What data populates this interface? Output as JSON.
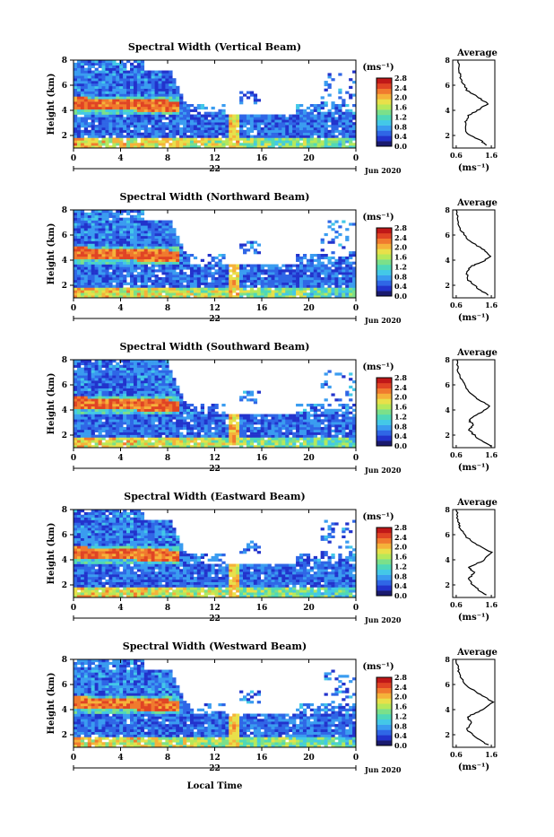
{
  "xlabel_bottom": "Local Time",
  "date_label": "Jun 2020",
  "day_label": "22",
  "height_label": "Height (km)",
  "avg_title": "Average",
  "unit_label": "(ms⁻¹)",
  "colors": {
    "ramp": [
      "#1a1a6e",
      "#2233cc",
      "#2f66e6",
      "#3a9cf0",
      "#43c8e8",
      "#4fd8b8",
      "#7be08a",
      "#b6e85a",
      "#e8e04a",
      "#f5b23a",
      "#f07a2e",
      "#e04424",
      "#c01818"
    ],
    "line": "#000000"
  },
  "chart_data": [
    {
      "type": "heatmap",
      "title": "Spectral Width (Vertical Beam)",
      "xlim": [
        0,
        24
      ],
      "ylim": [
        1,
        8
      ],
      "xticks": [
        "0",
        "4",
        "8",
        "12",
        "16",
        "20",
        "0"
      ],
      "yticks": [
        "2",
        "4",
        "6",
        "8"
      ],
      "colorbar_ticks": [
        "0.0",
        "0.4",
        "0.8",
        "1.2",
        "1.6",
        "2.0",
        "2.4",
        "2.8"
      ],
      "colorbar_range": [
        0,
        2.8
      ],
      "avg": {
        "xticks": [
          "0.6",
          "1.6"
        ],
        "yticks": [
          "2",
          "4",
          "6",
          "8"
        ],
        "xlim": [
          0.5,
          1.7
        ],
        "profile": [
          [
            1.45,
            1.2
          ],
          [
            1.3,
            1.6
          ],
          [
            0.9,
            2.2
          ],
          [
            0.85,
            3.0
          ],
          [
            0.95,
            3.6
          ],
          [
            1.2,
            4.0
          ],
          [
            1.5,
            4.5
          ],
          [
            1.25,
            5.0
          ],
          [
            0.9,
            5.6
          ],
          [
            0.75,
            6.4
          ],
          [
            0.7,
            7.0
          ],
          [
            0.65,
            8.0
          ]
        ]
      }
    },
    {
      "type": "heatmap",
      "title": "Spectral Width (Northward Beam)",
      "xlim": [
        0,
        24
      ],
      "ylim": [
        1,
        8
      ],
      "xticks": [
        "0",
        "4",
        "8",
        "12",
        "16",
        "20",
        "0"
      ],
      "yticks": [
        "2",
        "4",
        "6",
        "8"
      ],
      "colorbar_ticks": [
        "0.0",
        "0.4",
        "0.8",
        "1.2",
        "1.6",
        "2.0",
        "2.4",
        "2.8"
      ],
      "colorbar_range": [
        0,
        2.8
      ],
      "avg": {
        "xticks": [
          "0.6",
          "1.6"
        ],
        "yticks": [
          "2",
          "4",
          "6",
          "8"
        ],
        "xlim": [
          0.5,
          1.7
        ],
        "profile": [
          [
            1.5,
            1.2
          ],
          [
            1.2,
            1.8
          ],
          [
            0.95,
            2.4
          ],
          [
            0.9,
            3.0
          ],
          [
            1.0,
            3.5
          ],
          [
            1.3,
            3.8
          ],
          [
            1.6,
            4.3
          ],
          [
            1.4,
            4.8
          ],
          [
            1.0,
            5.5
          ],
          [
            0.75,
            6.3
          ],
          [
            0.65,
            7.0
          ],
          [
            0.6,
            8.0
          ]
        ]
      }
    },
    {
      "type": "heatmap",
      "title": "Spectral Width (Southward Beam)",
      "xlim": [
        0,
        24
      ],
      "ylim": [
        1,
        8
      ],
      "xticks": [
        "0",
        "4",
        "8",
        "12",
        "16",
        "20",
        "0"
      ],
      "yticks": [
        "2",
        "4",
        "6",
        "8"
      ],
      "colorbar_ticks": [
        "0.0",
        "0.4",
        "0.8",
        "1.2",
        "1.6",
        "2.0",
        "2.4",
        "2.8"
      ],
      "colorbar_range": [
        0,
        2.8
      ],
      "avg": {
        "xticks": [
          "0.6",
          "1.6"
        ],
        "yticks": [
          "2",
          "4",
          "6",
          "8"
        ],
        "xlim": [
          0.5,
          1.7
        ],
        "profile": [
          [
            1.6,
            1.1
          ],
          [
            1.2,
            1.8
          ],
          [
            0.95,
            2.4
          ],
          [
            1.1,
            2.8
          ],
          [
            0.95,
            3.2
          ],
          [
            1.3,
            3.8
          ],
          [
            1.55,
            4.3
          ],
          [
            1.2,
            4.9
          ],
          [
            0.9,
            5.6
          ],
          [
            0.75,
            6.4
          ],
          [
            0.65,
            7.2
          ],
          [
            0.62,
            8.0
          ]
        ]
      }
    },
    {
      "type": "heatmap",
      "title": "Spectral Width (Eastward Beam)",
      "xlim": [
        0,
        24
      ],
      "ylim": [
        1,
        8
      ],
      "xticks": [
        "0",
        "4",
        "8",
        "12",
        "16",
        "20",
        "0"
      ],
      "yticks": [
        "2",
        "4",
        "6",
        "8"
      ],
      "colorbar_ticks": [
        "0.0",
        "0.4",
        "0.8",
        "1.2",
        "1.6",
        "2.0",
        "2.4",
        "2.8"
      ],
      "colorbar_range": [
        0,
        2.8
      ],
      "avg": {
        "xticks": [
          "0.6",
          "1.6"
        ],
        "yticks": [
          "2",
          "4",
          "6",
          "8"
        ],
        "xlim": [
          0.5,
          1.7
        ],
        "profile": [
          [
            1.45,
            1.2
          ],
          [
            1.15,
            1.8
          ],
          [
            0.95,
            2.4
          ],
          [
            1.1,
            3.0
          ],
          [
            0.95,
            3.4
          ],
          [
            1.35,
            3.9
          ],
          [
            1.6,
            4.6
          ],
          [
            1.2,
            5.2
          ],
          [
            0.85,
            5.9
          ],
          [
            0.7,
            6.6
          ],
          [
            0.65,
            7.2
          ],
          [
            0.6,
            8.0
          ]
        ]
      }
    },
    {
      "type": "heatmap",
      "title": "Spectral Width (Westward Beam)",
      "xlim": [
        0,
        24
      ],
      "ylim": [
        1,
        8
      ],
      "xticks": [
        "0",
        "4",
        "8",
        "12",
        "16",
        "20",
        "0"
      ],
      "yticks": [
        "2",
        "4",
        "6",
        "8"
      ],
      "colorbar_ticks": [
        "0.0",
        "0.4",
        "0.8",
        "1.2",
        "1.6",
        "2.0",
        "2.4",
        "2.8"
      ],
      "colorbar_range": [
        0,
        2.8
      ],
      "avg": {
        "xticks": [
          "0.6",
          "1.6"
        ],
        "yticks": [
          "2",
          "4",
          "6",
          "8"
        ],
        "xlim": [
          0.5,
          1.7
        ],
        "profile": [
          [
            1.5,
            1.2
          ],
          [
            1.15,
            1.8
          ],
          [
            0.9,
            2.4
          ],
          [
            1.05,
            3.0
          ],
          [
            0.9,
            3.4
          ],
          [
            1.3,
            3.9
          ],
          [
            1.65,
            4.6
          ],
          [
            1.3,
            5.2
          ],
          [
            0.9,
            5.9
          ],
          [
            0.72,
            6.6
          ],
          [
            0.65,
            7.3
          ],
          [
            0.6,
            8.0
          ]
        ]
      }
    }
  ]
}
